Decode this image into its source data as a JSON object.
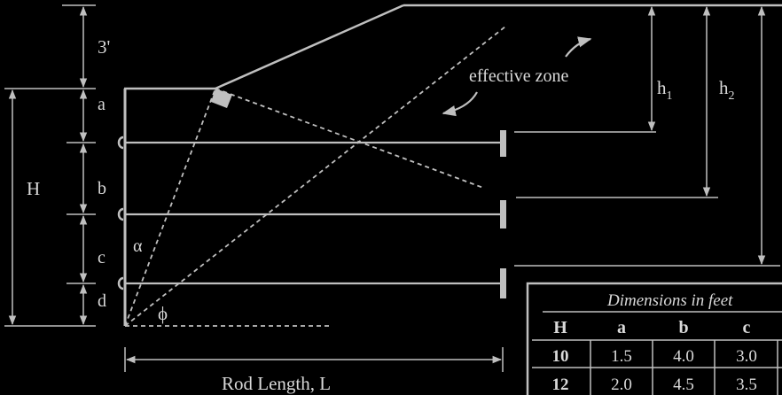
{
  "diagram": {
    "labels": {
      "top_spacing": "3'",
      "a": "a",
      "b": "b",
      "c": "c",
      "d": "d",
      "H": "H",
      "alpha": "α",
      "phi": "ϕ",
      "effective_zone": "effective zone",
      "h": "h",
      "h1_sub": "1",
      "h2_sub": "2",
      "rod_length": "Rod Length, L"
    },
    "table": {
      "caption": "Dimensions in feet",
      "headers": [
        "H",
        "a",
        "b",
        "c"
      ],
      "rows": [
        [
          "10",
          "1.5",
          "4.0",
          "3.0"
        ],
        [
          "12",
          "2.0",
          "4.5",
          "3.5"
        ]
      ]
    }
  },
  "colors": {
    "background": "#000000",
    "line": "#bfbfbf",
    "text": "#d9d9d9"
  }
}
